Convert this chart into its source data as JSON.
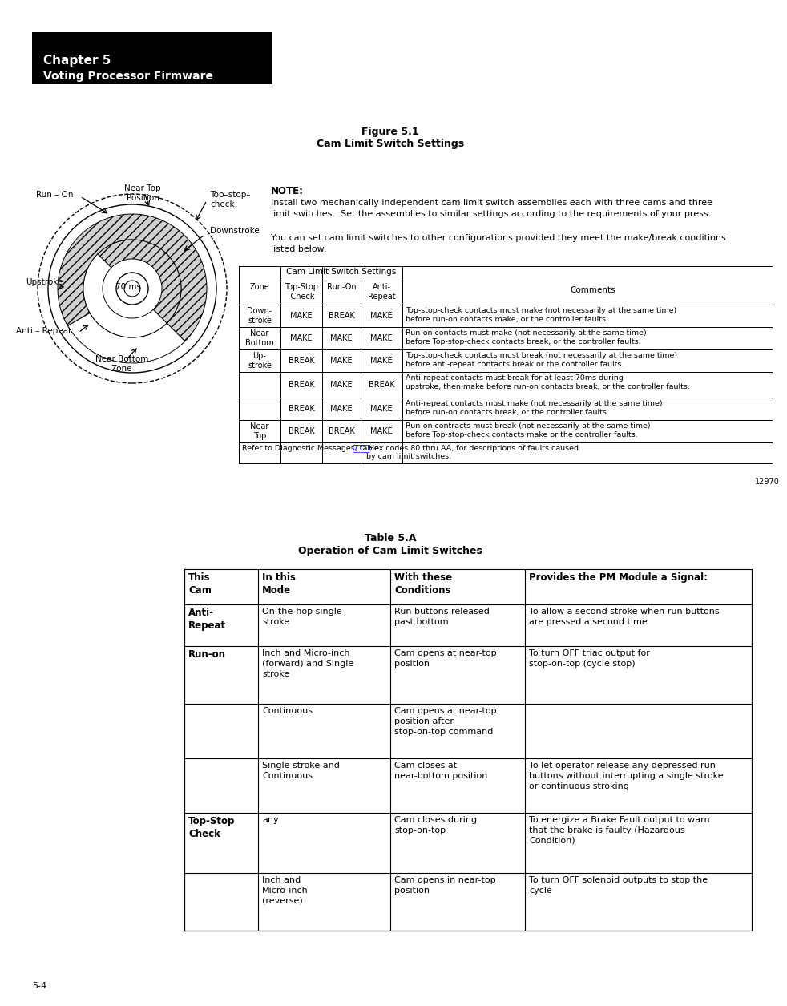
{
  "page_bg": "#ffffff",
  "header_bg": "#000000",
  "header_text_color": "#ffffff",
  "header_line1": "Chapter 5",
  "header_line2": "Voting Processor Firmware",
  "fig_title_line1": "Figure 5.1",
  "fig_title_line2": "Cam Limit Switch Settings",
  "note_title": "NOTE:",
  "note_text1": "Install two mechanically independent cam limit switch assemblies each with three cams and three\nlimit switches.  Set the assemblies to similar settings according to the requirements of your press.",
  "note_text2": "You can set cam limit switches to other configurations provided they meet the make/break conditions\nlisted below:",
  "diagram_labels": {
    "run_on": "Run – On",
    "near_top_pos": "Near Top\nPosition",
    "top_stop_check": "Top–stop–\ncheck",
    "downstroke": "Downstroke",
    "upstroke": "Upstroke",
    "70ms": "70 ms",
    "anti_repeat": "Anti – Repeat",
    "near_bottom": "Near Bottom\nZone"
  },
  "table1_rows": [
    [
      "Down-\nstroke",
      "MAKE",
      "BREAK",
      "MAKE",
      "Top-stop-check contacts must make (not necessarily at the same time)\nbefore run-on contacts make, or the controller faults."
    ],
    [
      "Near\nBottom",
      "MAKE",
      "MAKE",
      "MAKE",
      "Run-on contacts must make (not necessarily at the same time)\nbefore Top-stop-check contacts break, or the controller faults."
    ],
    [
      "Up-\nstroke",
      "BREAK",
      "MAKE",
      "MAKE",
      "Top-stop-check contacts must break (not necessarily at the same time)\nbefore anti-repeat contacts break or the controller faults."
    ],
    [
      "",
      "BREAK",
      "MAKE",
      "BREAK",
      "Anti-repeat contacts must break for at least 70ms during\nupstroke, then make before run-on contacts break, or the controller faults."
    ],
    [
      "",
      "BREAK",
      "MAKE",
      "MAKE",
      "Anti-repeat contacts must make (not necessarily at the same time)\nbefore run-on contacts break, or the controller faults."
    ],
    [
      "Near\nTop",
      "BREAK",
      "BREAK",
      "MAKE",
      "Run-on contracts must break (not necessarily at the same time)\nbefore Top-stop-check contacts make or the controller faults."
    ]
  ],
  "table1_footer_before": "Refer to Diagnostic Messages, table ",
  "table1_footer_link": "7.C.",
  "table1_footer_after": " Hex codes 80 thru AA, for descriptions of faults caused\nby cam limit switches.",
  "figure_number": "12970",
  "table2_title_line1": "Table 5.A",
  "table2_title_line2": "Operation of Cam Limit Switches",
  "table2_col_headers": [
    "This\nCam",
    "In this\nMode",
    "With these\nConditions",
    "Provides the PM Module a Signal:"
  ],
  "table2_rows": [
    [
      "Anti-\nRepeat",
      "On-the-hop single\nstroke",
      "Run buttons released\npast bottom",
      "To allow a second stroke when run buttons\nare pressed a second time"
    ],
    [
      "Run-on",
      "Inch and Micro-inch\n(forward) and Single\nstroke",
      "Cam opens at near-top\nposition",
      "To turn OFF triac output for\nstop-on-top (cycle stop)"
    ],
    [
      "",
      "Continuous",
      "Cam opens at near-top\nposition after\nstop-on-top command",
      ""
    ],
    [
      "",
      "Single stroke and\nContinuous",
      "Cam closes at\nnear-bottom position",
      "To let operator release any depressed run\nbuttons without interrupting a single stroke\nor continuous stroking"
    ],
    [
      "Top-Stop\nCheck",
      "any",
      "Cam closes during\nstop-on-top",
      "To energize a Brake Fault output to warn\nthat the brake is faulty (Hazardous\nCondition)"
    ],
    [
      "",
      "Inch and\nMicro-inch\n(reverse)",
      "Cam opens in near-top\nposition",
      "To turn OFF solenoid outputs to stop the\ncycle"
    ]
  ],
  "page_number": "5-4"
}
